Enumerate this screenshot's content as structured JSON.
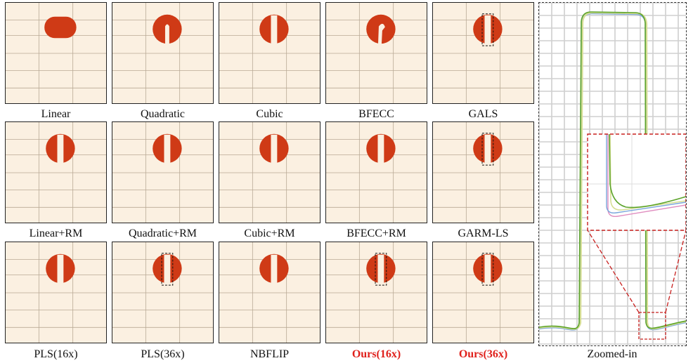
{
  "panels": [
    {
      "id": "linear",
      "caption": "Linear",
      "highlight": false,
      "shape": "blob",
      "zoom_box": false
    },
    {
      "id": "quadratic",
      "caption": "Quadratic",
      "highlight": false,
      "shape": "notched",
      "zoom_box": false
    },
    {
      "id": "cubic",
      "caption": "Cubic",
      "highlight": false,
      "shape": "disk",
      "zoom_box": false
    },
    {
      "id": "bfecc",
      "caption": "BFECC",
      "highlight": false,
      "shape": "bent",
      "zoom_box": false
    },
    {
      "id": "gals",
      "caption": "GALS",
      "highlight": false,
      "shape": "disk",
      "zoom_box": true
    },
    {
      "id": "linear-rm",
      "caption": "Linear+RM",
      "highlight": false,
      "shape": "disk",
      "zoom_box": false
    },
    {
      "id": "quadratic-rm",
      "caption": "Quadratic+RM",
      "highlight": false,
      "shape": "disk",
      "zoom_box": false
    },
    {
      "id": "cubic-rm",
      "caption": "Cubic+RM",
      "highlight": false,
      "shape": "disk",
      "zoom_box": false
    },
    {
      "id": "bfecc-rm",
      "caption": "BFECC+RM",
      "highlight": false,
      "shape": "disk",
      "zoom_box": false
    },
    {
      "id": "garm-ls",
      "caption": "GARM-LS",
      "highlight": false,
      "shape": "disk",
      "zoom_box": true
    },
    {
      "id": "pls16",
      "caption": "PLS(16x)",
      "highlight": false,
      "shape": "disk",
      "zoom_box": false
    },
    {
      "id": "pls36",
      "caption": "PLS(36x)",
      "highlight": false,
      "shape": "disk",
      "zoom_box": true
    },
    {
      "id": "nbflip",
      "caption": "NBFLIP",
      "highlight": false,
      "shape": "disk",
      "zoom_box": false
    },
    {
      "id": "ours16",
      "caption": "Ours(16x)",
      "highlight": true,
      "shape": "disk",
      "zoom_box": true
    },
    {
      "id": "ours36",
      "caption": "Ours(36x)",
      "highlight": true,
      "shape": "disk",
      "zoom_box": true
    }
  ],
  "zoom": {
    "caption": "Zoomed-in"
  },
  "colors": {
    "background": "#fbf0e1",
    "disk": "#cf3a16",
    "grid": "#b9a995",
    "highlight_text": "#e0201b",
    "zoom_box": "#c8201f",
    "curve_blue": "#79a6dc",
    "curve_green": "#5da42c",
    "curve_yellow": "#d6de93",
    "curve_pink": "#e08ec0"
  }
}
